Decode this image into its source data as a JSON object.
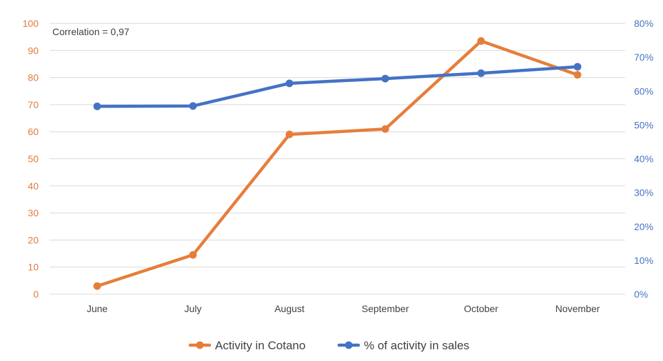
{
  "chart_data": {
    "type": "line",
    "categories": [
      "June",
      "July",
      "August",
      "September",
      "October",
      "November"
    ],
    "annotation": "Correlation = 0,97",
    "y_left": {
      "ylim": [
        0,
        100
      ],
      "ticks": [
        "0",
        "10",
        "20",
        "30",
        "40",
        "50",
        "60",
        "70",
        "80",
        "90",
        "100"
      ],
      "color": "#E07B39"
    },
    "y_right": {
      "ylim": [
        0,
        80
      ],
      "ticks": [
        "0%",
        "10%",
        "20%",
        "30%",
        "40%",
        "50%",
        "60%",
        "70%",
        "80%"
      ],
      "color": "#4472C4"
    },
    "series": [
      {
        "name": "Activity in Cotano",
        "axis": "left",
        "color": "#E67E3A",
        "values": [
          3,
          14.5,
          59,
          61,
          93.5,
          81
        ]
      },
      {
        "name": "% of activity in sales",
        "axis": "right",
        "color": "#4472C4",
        "values": [
          55.5,
          55.6,
          62.3,
          63.7,
          65.3,
          67.2
        ]
      }
    ],
    "grid": true,
    "legend_position": "bottom"
  }
}
